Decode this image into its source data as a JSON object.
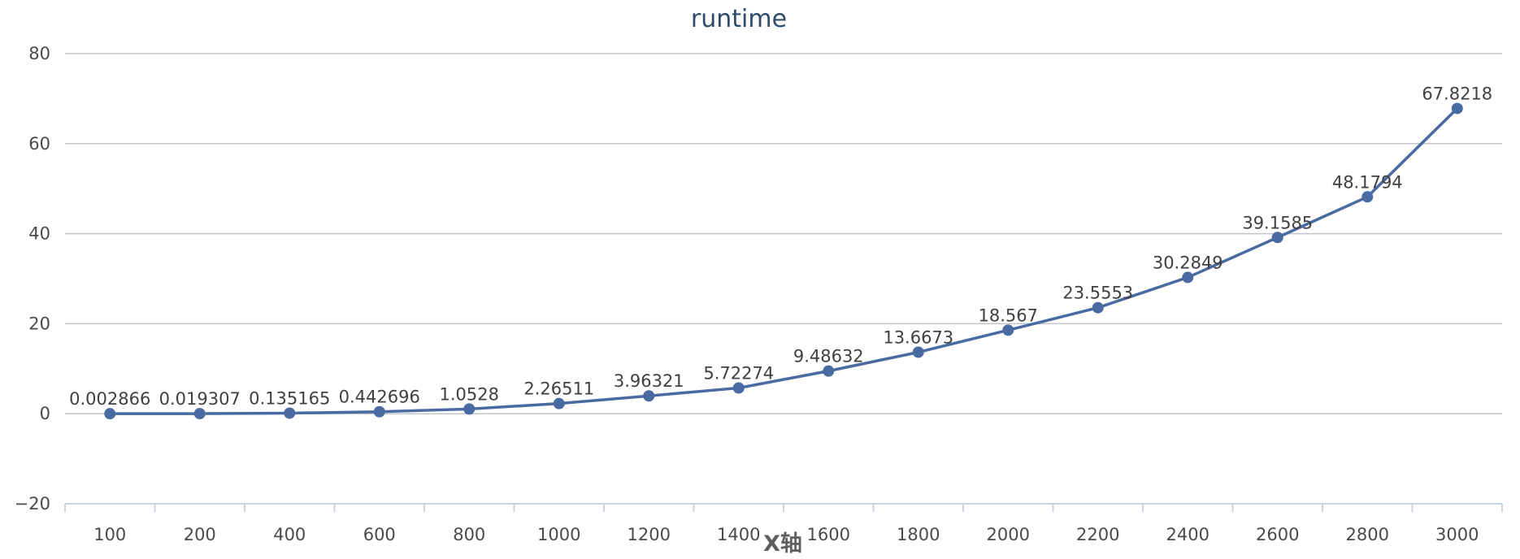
{
  "chart_data": {
    "type": "line",
    "title": "runtime",
    "xlabel": "X轴",
    "ylabel": "",
    "categories": [
      "100",
      "200",
      "400",
      "600",
      "800",
      "1000",
      "1200",
      "1400",
      "1600",
      "1800",
      "2000",
      "2200",
      "2400",
      "2600",
      "2800",
      "3000"
    ],
    "series": [
      {
        "values": [
          0.002866,
          0.019307,
          0.135165,
          0.442696,
          1.0528,
          2.26511,
          3.96321,
          5.72274,
          9.48632,
          13.6673,
          18.567,
          23.5553,
          30.2849,
          39.1585,
          48.1794,
          67.8218
        ],
        "labels": [
          "0.002866",
          "0.019307",
          "0.135165",
          "0.442696",
          "1.0528",
          "2.26511",
          "3.96321",
          "5.72274",
          "9.48632",
          "13.6673",
          "18.567",
          "23.5553",
          "30.2849",
          "39.1585",
          "48.1794",
          "67.8218"
        ],
        "color": "#4a6aa2"
      }
    ],
    "ylim": [
      -20,
      80
    ],
    "yticks": [
      "−20",
      "0",
      "20",
      "40",
      "60",
      "80"
    ],
    "grid": true,
    "legend": "none"
  }
}
